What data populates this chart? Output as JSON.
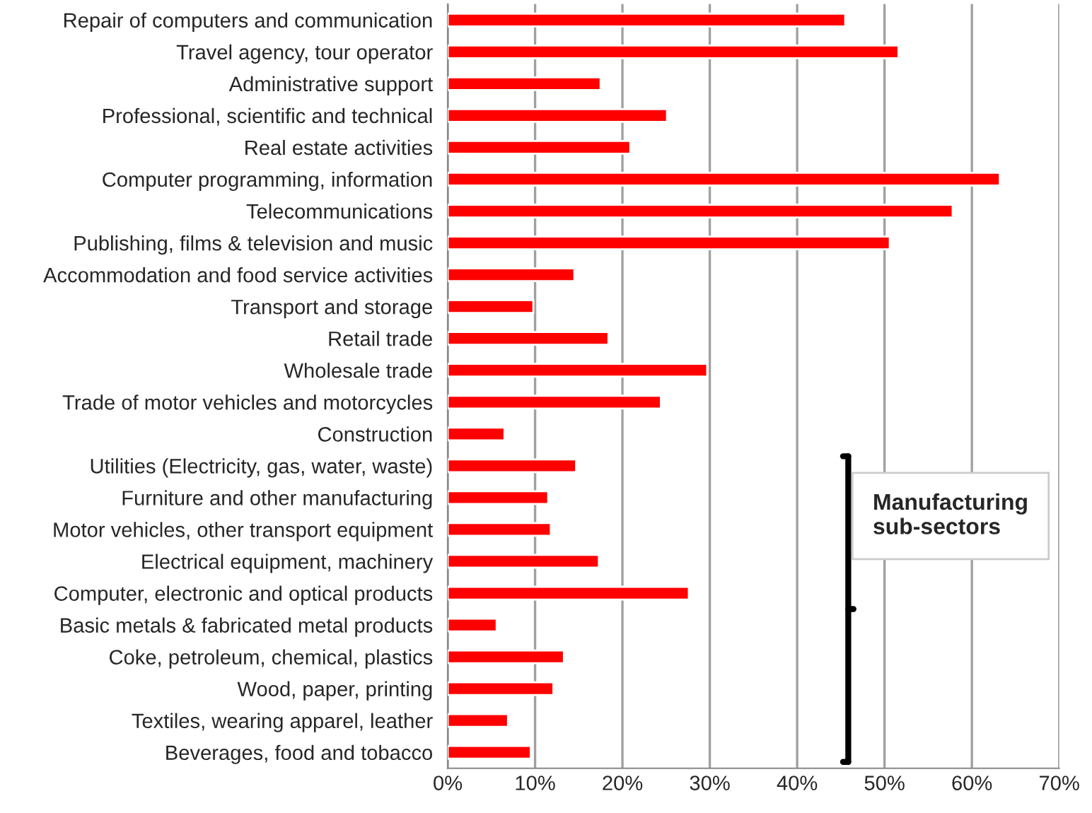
{
  "chart_data": {
    "type": "bar",
    "orientation": "horizontal",
    "categories": [
      "Repair of computers and communication",
      "Travel agency, tour operator",
      "Administrative support",
      "Professional, scientific and technical",
      "Real estate activities",
      "Computer programming, information",
      "Telecommunications",
      "Publishing, films & television and music",
      "Accommodation and food service activities",
      "Transport and storage",
      "Retail trade",
      "Wholesale trade",
      "Trade of motor vehicles and motorcycles",
      "Construction",
      "Utilities (Electricity, gas, water, waste)",
      "Furniture and other manufacturing",
      "Motor vehicles, other transport equipment",
      "Electrical equipment, machinery",
      "Computer, electronic and optical products",
      "Basic metals & fabricated metal products",
      "Coke, petroleum, chemical, plastics",
      "Wood, paper, printing",
      "Textiles, wearing apparel, leather",
      "Beverages, food and tobacco"
    ],
    "values": [
      45.5,
      51.6,
      17.5,
      25.1,
      20.9,
      63.2,
      57.8,
      50.6,
      14.5,
      9.8,
      18.4,
      29.7,
      24.4,
      6.5,
      14.7,
      11.5,
      11.8,
      17.3,
      27.6,
      5.6,
      13.3,
      12.1,
      6.9,
      9.5
    ],
    "color": "#ff0000",
    "xlim": [
      0,
      70
    ],
    "xticks": [
      {
        "value": 0,
        "label": "0%"
      },
      {
        "value": 10,
        "label": "10%"
      },
      {
        "value": 20,
        "label": "20%"
      },
      {
        "value": 30,
        "label": "30%"
      },
      {
        "value": 40,
        "label": "40%"
      },
      {
        "value": 50,
        "label": "50%"
      },
      {
        "value": 60,
        "label": "60%"
      },
      {
        "value": 70,
        "label": "70%"
      }
    ],
    "grid": "x",
    "annotations": [
      "Manufacturing\nsub-sectors"
    ]
  }
}
